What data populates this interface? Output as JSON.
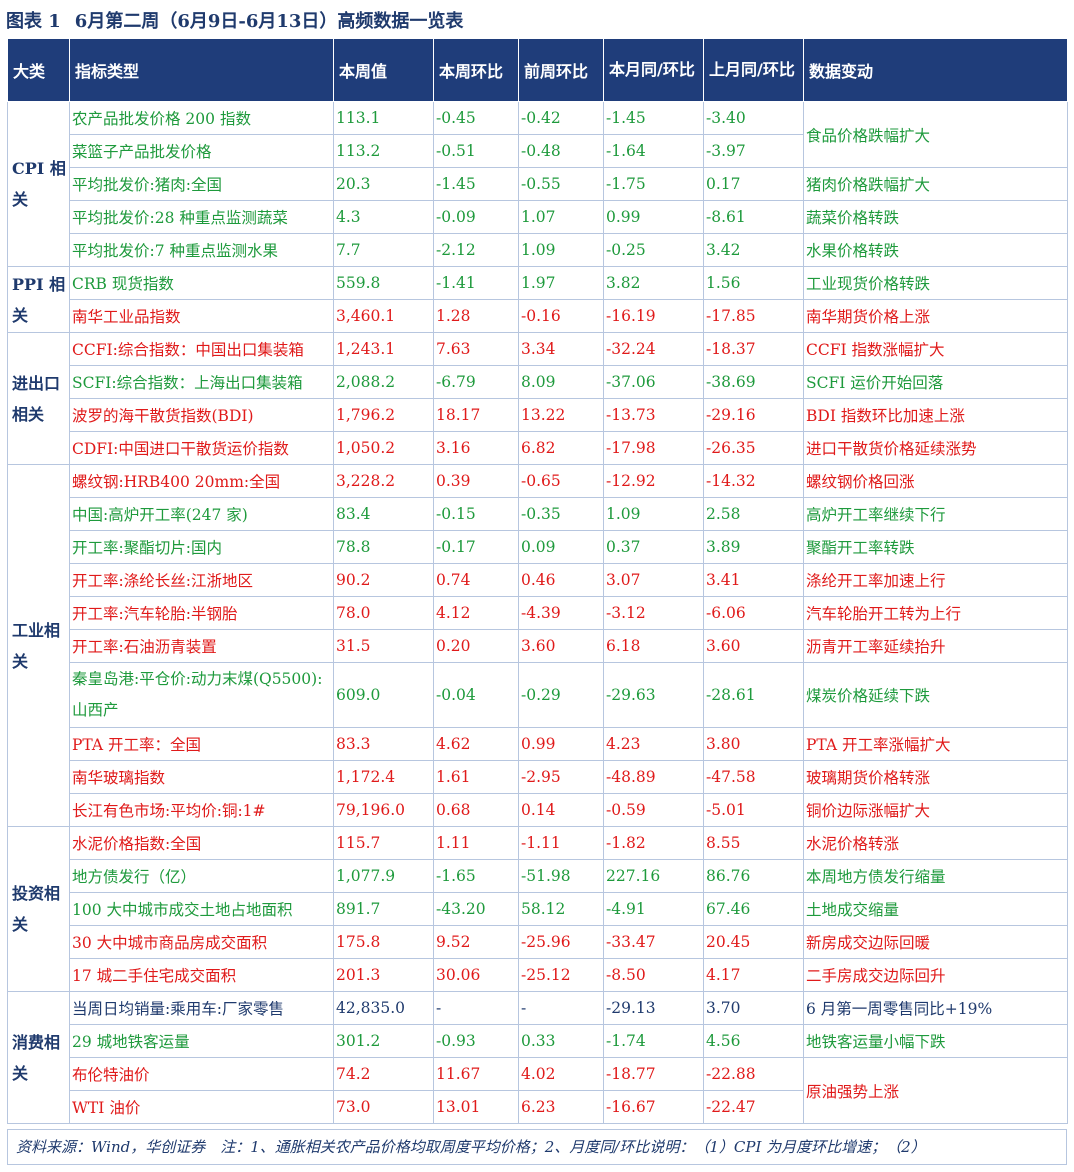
{
  "title": {
    "label": "图表 1",
    "text": "6月第二周（6月9日-6月13日）高频数据一览表"
  },
  "headers": [
    "大类",
    "指标类型",
    "本周值",
    "本周环比",
    "前周环比",
    "本月同/环比",
    "上月同/环比",
    "数据变动"
  ],
  "rows": [
    {
      "cat": "CPI 相关",
      "name": "农产品批发价格 200 指数",
      "v": "113.1",
      "wow": "-0.45",
      "pwow": "-0.42",
      "cm": "-1.45",
      "pm": "-3.40",
      "chg": "食品价格跌幅扩大",
      "color": "green"
    },
    {
      "name": "菜篮子产品批发价格",
      "v": "113.2",
      "wow": "-0.51",
      "pwow": "-0.48",
      "cm": "-1.64",
      "pm": "-3.97",
      "color": "green"
    },
    {
      "name": "平均批发价:猪肉:全国",
      "v": "20.3",
      "wow": "-1.45",
      "pwow": "-0.55",
      "cm": "-1.75",
      "pm": "0.17",
      "chg": "猪肉价格跌幅扩大",
      "color": "green"
    },
    {
      "name": "平均批发价:28 种重点监测蔬菜",
      "v": "4.3",
      "wow": "-0.09",
      "pwow": "1.07",
      "cm": "0.99",
      "pm": "-8.61",
      "chg": "蔬菜价格转跌",
      "color": "green"
    },
    {
      "name": "平均批发价:7 种重点监测水果",
      "v": "7.7",
      "wow": "-2.12",
      "pwow": "1.09",
      "cm": "-0.25",
      "pm": "3.42",
      "chg": "水果价格转跌",
      "color": "green"
    },
    {
      "cat": "PPI 相关",
      "name": "CRB 现货指数",
      "v": "559.8",
      "wow": "-1.41",
      "pwow": "1.97",
      "cm": "3.82",
      "pm": "1.56",
      "chg": "工业现货价格转跌",
      "color": "green"
    },
    {
      "name": "南华工业品指数",
      "v": "3,460.1",
      "wow": "1.28",
      "pwow": "-0.16",
      "cm": "-16.19",
      "pm": "-17.85",
      "chg": "南华期货价格上涨",
      "color": "red"
    },
    {
      "cat": "进出口相关",
      "name": "CCFI:综合指数：中国出口集装箱",
      "v": "1,243.1",
      "wow": "7.63",
      "pwow": "3.34",
      "cm": "-32.24",
      "pm": "-18.37",
      "chg": "CCFI 指数涨幅扩大",
      "color": "red"
    },
    {
      "name": "SCFI:综合指数：上海出口集装箱",
      "v": "2,088.2",
      "wow": "-6.79",
      "pwow": "8.09",
      "cm": "-37.06",
      "pm": "-38.69",
      "chg": "SCFI 运价开始回落",
      "color": "green"
    },
    {
      "name": "波罗的海干散货指数(BDI)",
      "v": "1,796.2",
      "wow": "18.17",
      "pwow": "13.22",
      "cm": "-13.73",
      "pm": "-29.16",
      "chg": "BDI 指数环比加速上涨",
      "color": "red"
    },
    {
      "name": "CDFI:中国进口干散货运价指数",
      "v": "1,050.2",
      "wow": "3.16",
      "pwow": "6.82",
      "cm": "-17.98",
      "pm": "-26.35",
      "chg": "进口干散货价格延续涨势",
      "color": "red"
    },
    {
      "cat": "工业相关",
      "name": "螺纹钢:HRB400 20mm:全国",
      "v": "3,228.2",
      "wow": "0.39",
      "pwow": "-0.65",
      "cm": "-12.92",
      "pm": "-14.32",
      "chg": "螺纹钢价格回涨",
      "color": "red"
    },
    {
      "name": "中国:高炉开工率(247 家)",
      "v": "83.4",
      "wow": "-0.15",
      "pwow": "-0.35",
      "cm": "1.09",
      "pm": "2.58",
      "chg": "高炉开工率继续下行",
      "color": "green"
    },
    {
      "name": "开工率:聚酯切片:国内",
      "v": "78.8",
      "wow": "-0.17",
      "pwow": "0.09",
      "cm": "0.37",
      "pm": "3.89",
      "chg": "聚酯开工率转跌",
      "color": "green"
    },
    {
      "name": "开工率:涤纶长丝:江浙地区",
      "v": "90.2",
      "wow": "0.74",
      "pwow": "0.46",
      "cm": "3.07",
      "pm": "3.41",
      "chg": "涤纶开工率加速上行",
      "color": "red"
    },
    {
      "name": "开工率:汽车轮胎:半钢胎",
      "v": "78.0",
      "wow": "4.12",
      "pwow": "-4.39",
      "cm": "-3.12",
      "pm": "-6.06",
      "chg": "汽车轮胎开工转为上行",
      "color": "red"
    },
    {
      "name": "开工率:石油沥青装置",
      "v": "31.5",
      "wow": "0.20",
      "pwow": "3.60",
      "cm": "6.18",
      "pm": "3.60",
      "chg": "沥青开工率延续抬升",
      "color": "red"
    },
    {
      "name": "秦皇岛港:平仓价:动力末煤(Q5500):山西产",
      "v": "609.0",
      "wow": "-0.04",
      "pwow": "-0.29",
      "cm": "-29.63",
      "pm": "-28.61",
      "chg": "煤炭价格延续下跌",
      "color": "green",
      "tall": true
    },
    {
      "name": "PTA 开工率：全国",
      "v": "83.3",
      "wow": "4.62",
      "pwow": "0.99",
      "cm": "4.23",
      "pm": "3.80",
      "chg": "PTA 开工率涨幅扩大",
      "color": "red"
    },
    {
      "name": "南华玻璃指数",
      "v": "1,172.4",
      "wow": "1.61",
      "pwow": "-2.95",
      "cm": "-48.89",
      "pm": "-47.58",
      "chg": "玻璃期货价格转涨",
      "color": "red"
    },
    {
      "name": "长江有色市场:平均价:铜:1#",
      "v": "79,196.0",
      "wow": "0.68",
      "pwow": "0.14",
      "cm": "-0.59",
      "pm": "-5.01",
      "chg": "铜价边际涨幅扩大",
      "color": "red"
    },
    {
      "cat": "投资相关",
      "name": "水泥价格指数:全国",
      "v": "115.7",
      "wow": "1.11",
      "pwow": "-1.11",
      "cm": "-1.82",
      "pm": "8.55",
      "chg": "水泥价格转涨",
      "color": "red"
    },
    {
      "name": "地方债发行（亿）",
      "v": "1,077.9",
      "wow": "-1.65",
      "pwow": "-51.98",
      "cm": "227.16",
      "pm": "86.76",
      "chg": "本周地方债发行缩量",
      "color": "green"
    },
    {
      "name": "100 大中城市成交土地占地面积",
      "v": "891.7",
      "wow": "-43.20",
      "pwow": "58.12",
      "cm": "-4.91",
      "pm": "67.46",
      "chg": "土地成交缩量",
      "color": "green"
    },
    {
      "name": "30 大中城市商品房成交面积",
      "v": "175.8",
      "wow": "9.52",
      "pwow": "-25.96",
      "cm": "-33.47",
      "pm": "20.45",
      "chg": "新房成交边际回暖",
      "color": "red"
    },
    {
      "name": "17 城二手住宅成交面积",
      "v": "201.3",
      "wow": "30.06",
      "pwow": "-25.12",
      "cm": "-8.50",
      "pm": "4.17",
      "chg": "二手房成交边际回升",
      "color": "red"
    },
    {
      "cat": "消费相关",
      "name": "当周日均销量:乘用车:厂家零售",
      "v": "42,835.0",
      "wow": "-",
      "pwow": "-",
      "cm": "-29.13",
      "pm": "3.70",
      "chg": "6 月第一周零售同比+19%",
      "color": "dark"
    },
    {
      "name": "29 城地铁客运量",
      "v": "301.2",
      "wow": "-0.93",
      "pwow": "0.33",
      "cm": "-1.74",
      "pm": "4.56",
      "chg": "地铁客运量小幅下跌",
      "color": "green"
    },
    {
      "name": "布伦特油价",
      "v": "74.2",
      "wow": "11.67",
      "pwow": "4.02",
      "cm": "-18.77",
      "pm": "-22.88",
      "chg": "原油强势上涨",
      "color": "red"
    },
    {
      "name": "WTI 油价",
      "v": "73.0",
      "wow": "13.01",
      "pwow": "6.23",
      "cm": "-16.67",
      "pm": "-22.47",
      "color": "red"
    }
  ],
  "footer": "资料来源：Wind，华创证券　注：1、通胀相关农产品价格均取周度平均价格；2、月度同/环比说明：（1）CPI 为月度环比增速；（2）"
}
